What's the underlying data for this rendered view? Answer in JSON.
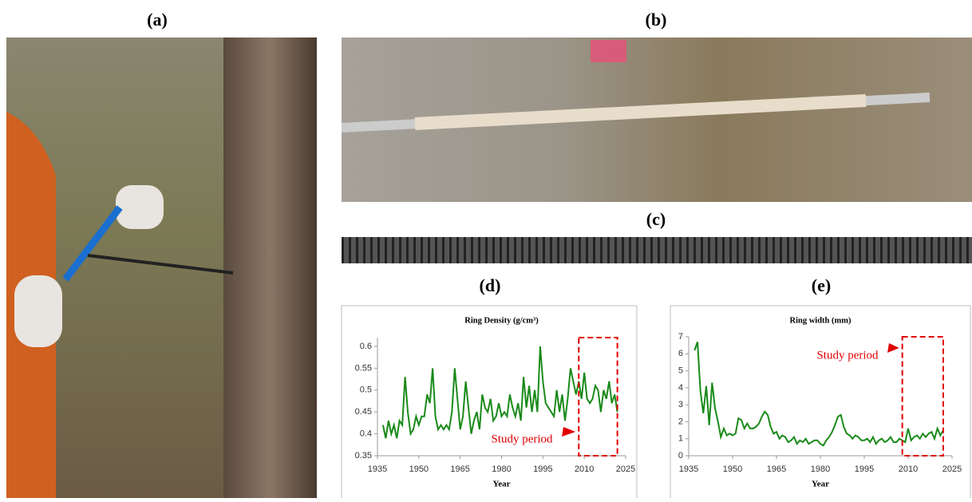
{
  "panels": {
    "a": "(a)",
    "b": "(b)",
    "c": "(c)"
  },
  "chart_data": [
    {
      "type": "line",
      "panel": "(d)",
      "title": "Ring Density (g/cm³)",
      "xlabel": "Year",
      "x": [
        1937,
        1938,
        1939,
        1940,
        1941,
        1942,
        1943,
        1944,
        1945,
        1946,
        1947,
        1948,
        1949,
        1950,
        1951,
        1952,
        1953,
        1954,
        1955,
        1956,
        1957,
        1958,
        1959,
        1960,
        1961,
        1962,
        1963,
        1964,
        1965,
        1966,
        1967,
        1968,
        1969,
        1970,
        1971,
        1972,
        1973,
        1974,
        1975,
        1976,
        1977,
        1978,
        1979,
        1980,
        1981,
        1982,
        1983,
        1984,
        1985,
        1986,
        1987,
        1988,
        1989,
        1990,
        1991,
        1992,
        1993,
        1994,
        1995,
        1996,
        1997,
        1998,
        1999,
        2000,
        2001,
        2002,
        2003,
        2004,
        2005,
        2006,
        2007,
        2008,
        2009,
        2010,
        2011,
        2012,
        2013,
        2014,
        2015,
        2016,
        2017,
        2018,
        2019,
        2020,
        2021,
        2022
      ],
      "values": [
        0.42,
        0.39,
        0.43,
        0.4,
        0.42,
        0.39,
        0.43,
        0.42,
        0.53,
        0.45,
        0.4,
        0.41,
        0.44,
        0.42,
        0.44,
        0.44,
        0.49,
        0.47,
        0.55,
        0.44,
        0.41,
        0.42,
        0.41,
        0.42,
        0.41,
        0.45,
        0.55,
        0.48,
        0.41,
        0.44,
        0.52,
        0.46,
        0.4,
        0.43,
        0.45,
        0.41,
        0.49,
        0.46,
        0.45,
        0.48,
        0.43,
        0.44,
        0.47,
        0.44,
        0.45,
        0.44,
        0.49,
        0.46,
        0.44,
        0.47,
        0.43,
        0.53,
        0.46,
        0.51,
        0.45,
        0.5,
        0.45,
        0.6,
        0.52,
        0.47,
        0.46,
        0.45,
        0.44,
        0.5,
        0.45,
        0.49,
        0.43,
        0.48,
        0.55,
        0.52,
        0.49,
        0.52,
        0.48,
        0.54,
        0.48,
        0.47,
        0.48,
        0.51,
        0.5,
        0.45,
        0.5,
        0.48,
        0.52,
        0.47,
        0.49,
        0.45
      ],
      "color": "#1a8a1a",
      "xlim": [
        1935,
        2025
      ],
      "xticks": [
        1935,
        1950,
        1965,
        1980,
        1995,
        2010,
        2025
      ],
      "ylim": [
        0.35,
        0.62
      ],
      "yticks": [
        0.35,
        0.4,
        0.45,
        0.5,
        0.55,
        0.6
      ],
      "highlight": {
        "range": [
          2008,
          2022
        ],
        "color": "#e00000",
        "label": "Study period"
      }
    },
    {
      "type": "line",
      "panel": "(e)",
      "title": "Ring width (mm)",
      "xlabel": "Year",
      "x": [
        1937,
        1938,
        1939,
        1940,
        1941,
        1942,
        1943,
        1944,
        1945,
        1946,
        1947,
        1948,
        1949,
        1950,
        1951,
        1952,
        1953,
        1954,
        1955,
        1956,
        1957,
        1958,
        1959,
        1960,
        1961,
        1962,
        1963,
        1964,
        1965,
        1966,
        1967,
        1968,
        1969,
        1970,
        1971,
        1972,
        1973,
        1974,
        1975,
        1976,
        1977,
        1978,
        1979,
        1980,
        1981,
        1982,
        1983,
        1984,
        1985,
        1986,
        1987,
        1988,
        1989,
        1990,
        1991,
        1992,
        1993,
        1994,
        1995,
        1996,
        1997,
        1998,
        1999,
        2000,
        2001,
        2002,
        2003,
        2004,
        2005,
        2006,
        2007,
        2008,
        2009,
        2010,
        2011,
        2012,
        2013,
        2014,
        2015,
        2016,
        2017,
        2018,
        2019,
        2020,
        2021,
        2022
      ],
      "values": [
        6.2,
        6.7,
        3.8,
        2.5,
        4.1,
        1.8,
        4.3,
        2.8,
        2.0,
        1.1,
        1.6,
        1.2,
        1.3,
        1.2,
        1.3,
        2.2,
        2.1,
        1.6,
        1.9,
        1.6,
        1.6,
        1.7,
        1.9,
        2.3,
        2.6,
        2.4,
        1.7,
        1.3,
        1.4,
        1.0,
        1.2,
        1.1,
        0.8,
        0.9,
        1.1,
        0.7,
        0.9,
        0.8,
        1.0,
        0.7,
        0.8,
        0.9,
        0.9,
        0.7,
        0.6,
        0.9,
        1.1,
        1.4,
        1.8,
        2.3,
        2.4,
        1.7,
        1.3,
        1.2,
        1.0,
        1.2,
        1.1,
        0.9,
        0.9,
        1.0,
        0.8,
        1.1,
        0.7,
        0.9,
        1.0,
        0.8,
        0.9,
        1.1,
        0.8,
        0.8,
        1.0,
        0.9,
        0.8,
        1.6,
        0.9,
        1.1,
        1.2,
        1.0,
        1.3,
        1.1,
        1.3,
        1.4,
        1.0,
        1.6,
        1.2,
        1.5
      ],
      "color": "#1a8a1a",
      "xlim": [
        1935,
        2025
      ],
      "xticks": [
        1935,
        1950,
        1965,
        1980,
        1995,
        2010,
        2025
      ],
      "ylim": [
        0,
        7
      ],
      "yticks": [
        0,
        1,
        2,
        3,
        4,
        5,
        6,
        7
      ],
      "highlight": {
        "range": [
          2008,
          2022
        ],
        "color": "#e00000",
        "label": "Study period"
      }
    }
  ]
}
